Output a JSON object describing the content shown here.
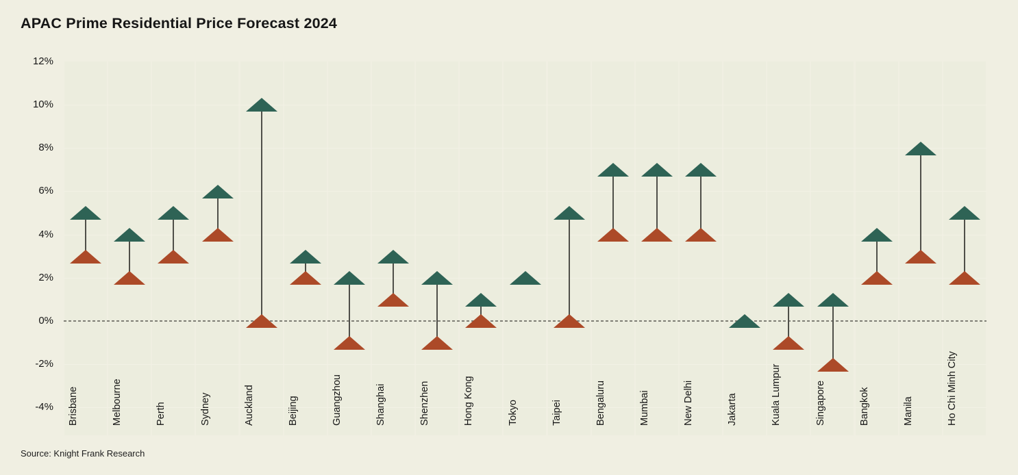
{
  "page": {
    "title": "APAC Prime Residential Price Forecast 2024",
    "source": "Source: Knight Frank Research"
  },
  "colors": {
    "background": "#f0efe2",
    "band": "#ecedde",
    "gridline": "#f2f1e5",
    "zero_line": "#7e7e75",
    "connector": "#4f4f49",
    "max_marker": "#2e6355",
    "min_marker": "#ac4a28",
    "text": "#161616"
  },
  "chart_data": {
    "type": "range",
    "title": "APAC Prime Residential Price Forecast 2024",
    "xlabel": "",
    "ylabel": "",
    "ylim": [
      -4,
      12
    ],
    "grid": "faint horizontal lines every 2%, dotted emphasis line at 0%",
    "legend": "none",
    "y_ticks": [
      {
        "value": 12,
        "label": "12%"
      },
      {
        "value": 10,
        "label": "10%"
      },
      {
        "value": 8,
        "label": "8%"
      },
      {
        "value": 6,
        "label": "6%"
      },
      {
        "value": 4,
        "label": "4%"
      },
      {
        "value": 2,
        "label": "2%"
      },
      {
        "value": 0,
        "label": "0%"
      },
      {
        "value": -2,
        "label": "-2%"
      },
      {
        "value": -4,
        "label": "-4%"
      }
    ],
    "categories": [
      "Brisbane",
      "Melbourne",
      "Perth",
      "Sydney",
      "Auckland",
      "Beijing",
      "Guangzhou",
      "Shanghai",
      "Shenzhen",
      "Hong Kong",
      "Tokyo",
      "Taipei",
      "Bengaluru",
      "Mumbai",
      "New Delhi",
      "Jakarta",
      "Kuala Lumpur",
      "Singapore",
      "Bangkok",
      "Manila",
      "Ho Chi Minh City"
    ],
    "series": [
      {
        "name": "high",
        "marker": "green-up-triangle",
        "values": [
          5,
          4,
          5,
          6,
          10,
          3,
          2,
          3,
          2,
          1,
          2,
          5,
          7,
          7,
          7,
          0,
          1,
          1,
          4,
          8,
          5
        ]
      },
      {
        "name": "low",
        "marker": "red-up-triangle",
        "values": [
          3,
          2,
          3,
          4,
          0,
          2,
          -1,
          1,
          -1,
          0,
          null,
          0,
          4,
          4,
          4,
          null,
          -1,
          -2,
          2,
          3,
          2
        ]
      }
    ]
  }
}
